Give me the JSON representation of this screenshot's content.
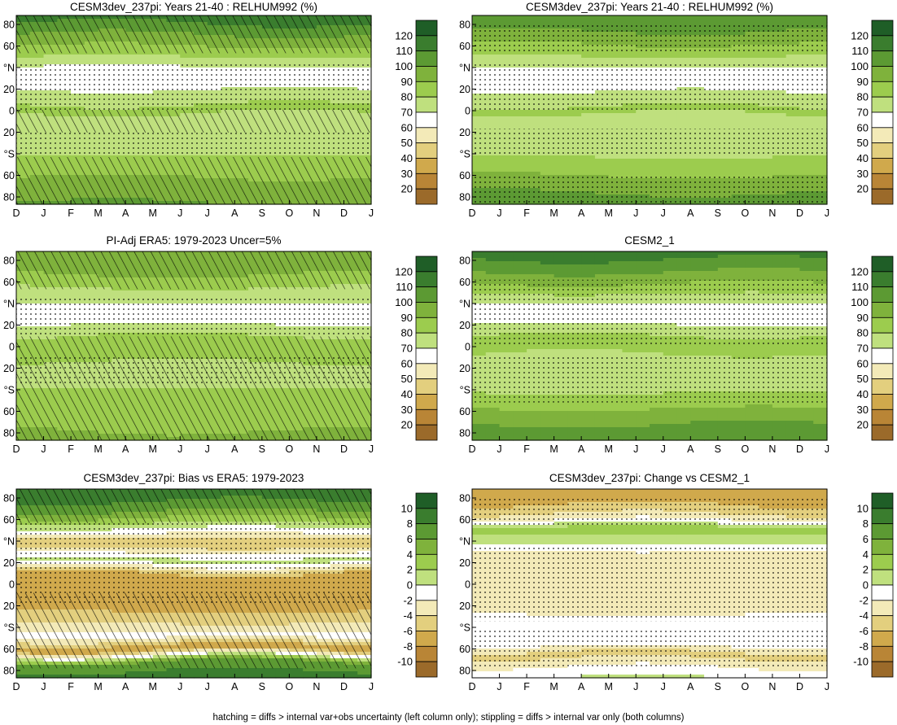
{
  "chart_data": [
    {
      "type": "heatmap",
      "title": "CESM3dev_237pi: Years 21-40 : RELHUM992 (%)",
      "x_tick_labels": [
        "D",
        "J",
        "F",
        "M",
        "A",
        "M",
        "J",
        "J",
        "A",
        "S",
        "O",
        "N",
        "D",
        "J"
      ],
      "y_tick_labels": [
        "80",
        "60",
        "°N",
        "20",
        "0",
        "20",
        "°S",
        "60",
        "80"
      ],
      "colorbar_labels": [
        "120",
        "110",
        "100",
        "90",
        "80",
        "70",
        "60",
        "50",
        "40",
        "30",
        "20"
      ],
      "colors": [
        "#1f5e27",
        "#3a7d2e",
        "#5c9a33",
        "#7fb23c",
        "#9ccc4e",
        "#bfe07e",
        "#ffffff",
        "#f3eab8",
        "#e3cf7e",
        "#d0a94c",
        "#b98536",
        "#9b6a2a"
      ],
      "latitude_profile": [
        {
          "lat": 85,
          "value": 112
        },
        {
          "lat": 70,
          "value": 98
        },
        {
          "lat": 55,
          "value": 85
        },
        {
          "lat": 40,
          "value": 68
        },
        {
          "lat": 25,
          "value": 65
        },
        {
          "lat": 10,
          "value": 78
        },
        {
          "lat": 0,
          "value": 82
        },
        {
          "lat": -15,
          "value": 72
        },
        {
          "lat": -30,
          "value": 70
        },
        {
          "lat": -45,
          "value": 82
        },
        {
          "lat": -60,
          "value": 88
        },
        {
          "lat": -75,
          "value": 95
        },
        {
          "lat": -88,
          "value": 100
        }
      ]
    },
    {
      "type": "heatmap",
      "title": "CESM3dev_237pi: Years 21-40 : RELHUM992 (%)",
      "x_tick_labels": [
        "D",
        "J",
        "F",
        "M",
        "A",
        "M",
        "J",
        "J",
        "A",
        "S",
        "O",
        "N",
        "D",
        "J"
      ],
      "y_tick_labels": [
        "80",
        "60",
        "°N",
        "20",
        "0",
        "20",
        "°S",
        "60",
        "80"
      ],
      "colorbar_labels": [
        "120",
        "110",
        "100",
        "90",
        "80",
        "70",
        "60",
        "50",
        "40",
        "30",
        "20"
      ],
      "colors": [
        "#1f5e27",
        "#3a7d2e",
        "#5c9a33",
        "#7fb23c",
        "#9ccc4e",
        "#bfe07e",
        "#ffffff",
        "#f3eab8",
        "#e3cf7e",
        "#d0a94c",
        "#b98536",
        "#9b6a2a"
      ],
      "latitude_profile": [
        {
          "lat": 85,
          "value": 108
        },
        {
          "lat": 70,
          "value": 96
        },
        {
          "lat": 55,
          "value": 84
        },
        {
          "lat": 40,
          "value": 70
        },
        {
          "lat": 25,
          "value": 64
        },
        {
          "lat": 10,
          "value": 76
        },
        {
          "lat": 0,
          "value": 82
        },
        {
          "lat": -15,
          "value": 74
        },
        {
          "lat": -30,
          "value": 70
        },
        {
          "lat": -45,
          "value": 80
        },
        {
          "lat": -60,
          "value": 88
        },
        {
          "lat": -75,
          "value": 98
        },
        {
          "lat": -88,
          "value": 104
        }
      ]
    },
    {
      "type": "heatmap",
      "title": "PI-Adj ERA5: 1979-2023 Uncer=5%",
      "x_tick_labels": [
        "D",
        "J",
        "F",
        "M",
        "A",
        "M",
        "J",
        "J",
        "A",
        "S",
        "O",
        "N",
        "D",
        "J"
      ],
      "y_tick_labels": [
        "80",
        "60",
        "°N",
        "20",
        "0",
        "20",
        "°S",
        "60",
        "80"
      ],
      "colorbar_labels": [
        "120",
        "110",
        "100",
        "90",
        "80",
        "70",
        "60",
        "50",
        "40",
        "30",
        "20"
      ],
      "colors": [
        "#1f5e27",
        "#3a7d2e",
        "#5c9a33",
        "#7fb23c",
        "#9ccc4e",
        "#bfe07e",
        "#ffffff",
        "#f3eab8",
        "#e3cf7e",
        "#d0a94c",
        "#b98536",
        "#9b6a2a"
      ],
      "latitude_profile": [
        {
          "lat": 85,
          "value": 98
        },
        {
          "lat": 70,
          "value": 92
        },
        {
          "lat": 55,
          "value": 80
        },
        {
          "lat": 40,
          "value": 70
        },
        {
          "lat": 25,
          "value": 66
        },
        {
          "lat": 10,
          "value": 80
        },
        {
          "lat": 0,
          "value": 84
        },
        {
          "lat": -15,
          "value": 80
        },
        {
          "lat": -30,
          "value": 76
        },
        {
          "lat": -45,
          "value": 82
        },
        {
          "lat": -60,
          "value": 85
        },
        {
          "lat": -75,
          "value": 88
        },
        {
          "lat": -88,
          "value": 92
        }
      ]
    },
    {
      "type": "heatmap",
      "title": "CESM2_1",
      "x_tick_labels": [
        "D",
        "J",
        "F",
        "M",
        "A",
        "M",
        "J",
        "J",
        "A",
        "S",
        "O",
        "N",
        "D",
        "J"
      ],
      "y_tick_labels": [
        "80",
        "60",
        "°N",
        "20",
        "0",
        "20",
        "°S",
        "60",
        "80"
      ],
      "colorbar_labels": [
        "120",
        "110",
        "100",
        "90",
        "80",
        "70",
        "60",
        "50",
        "40",
        "30",
        "20"
      ],
      "colors": [
        "#1f5e27",
        "#3a7d2e",
        "#5c9a33",
        "#7fb23c",
        "#9ccc4e",
        "#bfe07e",
        "#ffffff",
        "#f3eab8",
        "#e3cf7e",
        "#d0a94c",
        "#b98536",
        "#9b6a2a"
      ],
      "latitude_profile": [
        {
          "lat": 85,
          "value": 112
        },
        {
          "lat": 70,
          "value": 100
        },
        {
          "lat": 55,
          "value": 86
        },
        {
          "lat": 40,
          "value": 70
        },
        {
          "lat": 25,
          "value": 66
        },
        {
          "lat": 10,
          "value": 80
        },
        {
          "lat": 0,
          "value": 84
        },
        {
          "lat": -15,
          "value": 76
        },
        {
          "lat": -30,
          "value": 70
        },
        {
          "lat": -45,
          "value": 80
        },
        {
          "lat": -60,
          "value": 90
        },
        {
          "lat": -75,
          "value": 100
        },
        {
          "lat": -88,
          "value": 106
        }
      ]
    },
    {
      "type": "heatmap",
      "title": "CESM3dev_237pi: Bias vs ERA5: 1979-2023",
      "x_tick_labels": [
        "D",
        "J",
        "F",
        "M",
        "A",
        "M",
        "J",
        "J",
        "A",
        "S",
        "O",
        "N",
        "D",
        "J"
      ],
      "y_tick_labels": [
        "80",
        "60",
        "°N",
        "20",
        "0",
        "20",
        "°S",
        "60",
        "80"
      ],
      "colorbar_labels": [
        "10",
        "8",
        "6",
        "4",
        "2",
        "0",
        "-2",
        "-4",
        "-6",
        "-8",
        "-10"
      ],
      "colors": [
        "#1f5e27",
        "#3a7d2e",
        "#5c9a33",
        "#7fb23c",
        "#9ccc4e",
        "#bfe07e",
        "#ffffff",
        "#f3eab8",
        "#e3cf7e",
        "#d0a94c",
        "#b98536",
        "#9b6a2a"
      ],
      "latitude_profile": [
        {
          "lat": 85,
          "value": 9
        },
        {
          "lat": 72,
          "value": 7
        },
        {
          "lat": 60,
          "value": 3
        },
        {
          "lat": 50,
          "value": -1
        },
        {
          "lat": 38,
          "value": -6
        },
        {
          "lat": 22,
          "value": 1
        },
        {
          "lat": 8,
          "value": -7
        },
        {
          "lat": -5,
          "value": -8
        },
        {
          "lat": -20,
          "value": -7
        },
        {
          "lat": -35,
          "value": -5
        },
        {
          "lat": -50,
          "value": -1
        },
        {
          "lat": -62,
          "value": -8
        },
        {
          "lat": -75,
          "value": 6
        },
        {
          "lat": -88,
          "value": 9
        }
      ]
    },
    {
      "type": "heatmap",
      "title": "CESM3dev_237pi: Change vs CESM2_1",
      "x_tick_labels": [
        "D",
        "J",
        "F",
        "M",
        "A",
        "M",
        "J",
        "J",
        "A",
        "S",
        "O",
        "N",
        "D",
        "J"
      ],
      "y_tick_labels": [
        "80",
        "60",
        "°N",
        "20",
        "0",
        "20",
        "°S",
        "60",
        "80"
      ],
      "colorbar_labels": [
        "10",
        "8",
        "6",
        "4",
        "2",
        "0",
        "-2",
        "-4",
        "-6",
        "-8",
        "-10"
      ],
      "colors": [
        "#1f5e27",
        "#3a7d2e",
        "#5c9a33",
        "#7fb23c",
        "#9ccc4e",
        "#bfe07e",
        "#ffffff",
        "#f3eab8",
        "#e3cf7e",
        "#d0a94c",
        "#b98536",
        "#9b6a2a"
      ],
      "latitude_profile": [
        {
          "lat": 88,
          "value": -7
        },
        {
          "lat": 75,
          "value": -6
        },
        {
          "lat": 62,
          "value": -3
        },
        {
          "lat": 52,
          "value": 3
        },
        {
          "lat": 40,
          "value": 1
        },
        {
          "lat": 28,
          "value": -3
        },
        {
          "lat": 15,
          "value": -2
        },
        {
          "lat": 0,
          "value": -3
        },
        {
          "lat": -15,
          "value": -3
        },
        {
          "lat": -30,
          "value": -2
        },
        {
          "lat": -45,
          "value": -1
        },
        {
          "lat": -55,
          "value": 0
        },
        {
          "lat": -68,
          "value": -5
        },
        {
          "lat": -80,
          "value": -2
        },
        {
          "lat": -90,
          "value": 0
        }
      ]
    }
  ],
  "footnote": "hatching = diffs > internal var+obs uncertainty (left column only); stippling = diffs > internal var only (both columns)"
}
